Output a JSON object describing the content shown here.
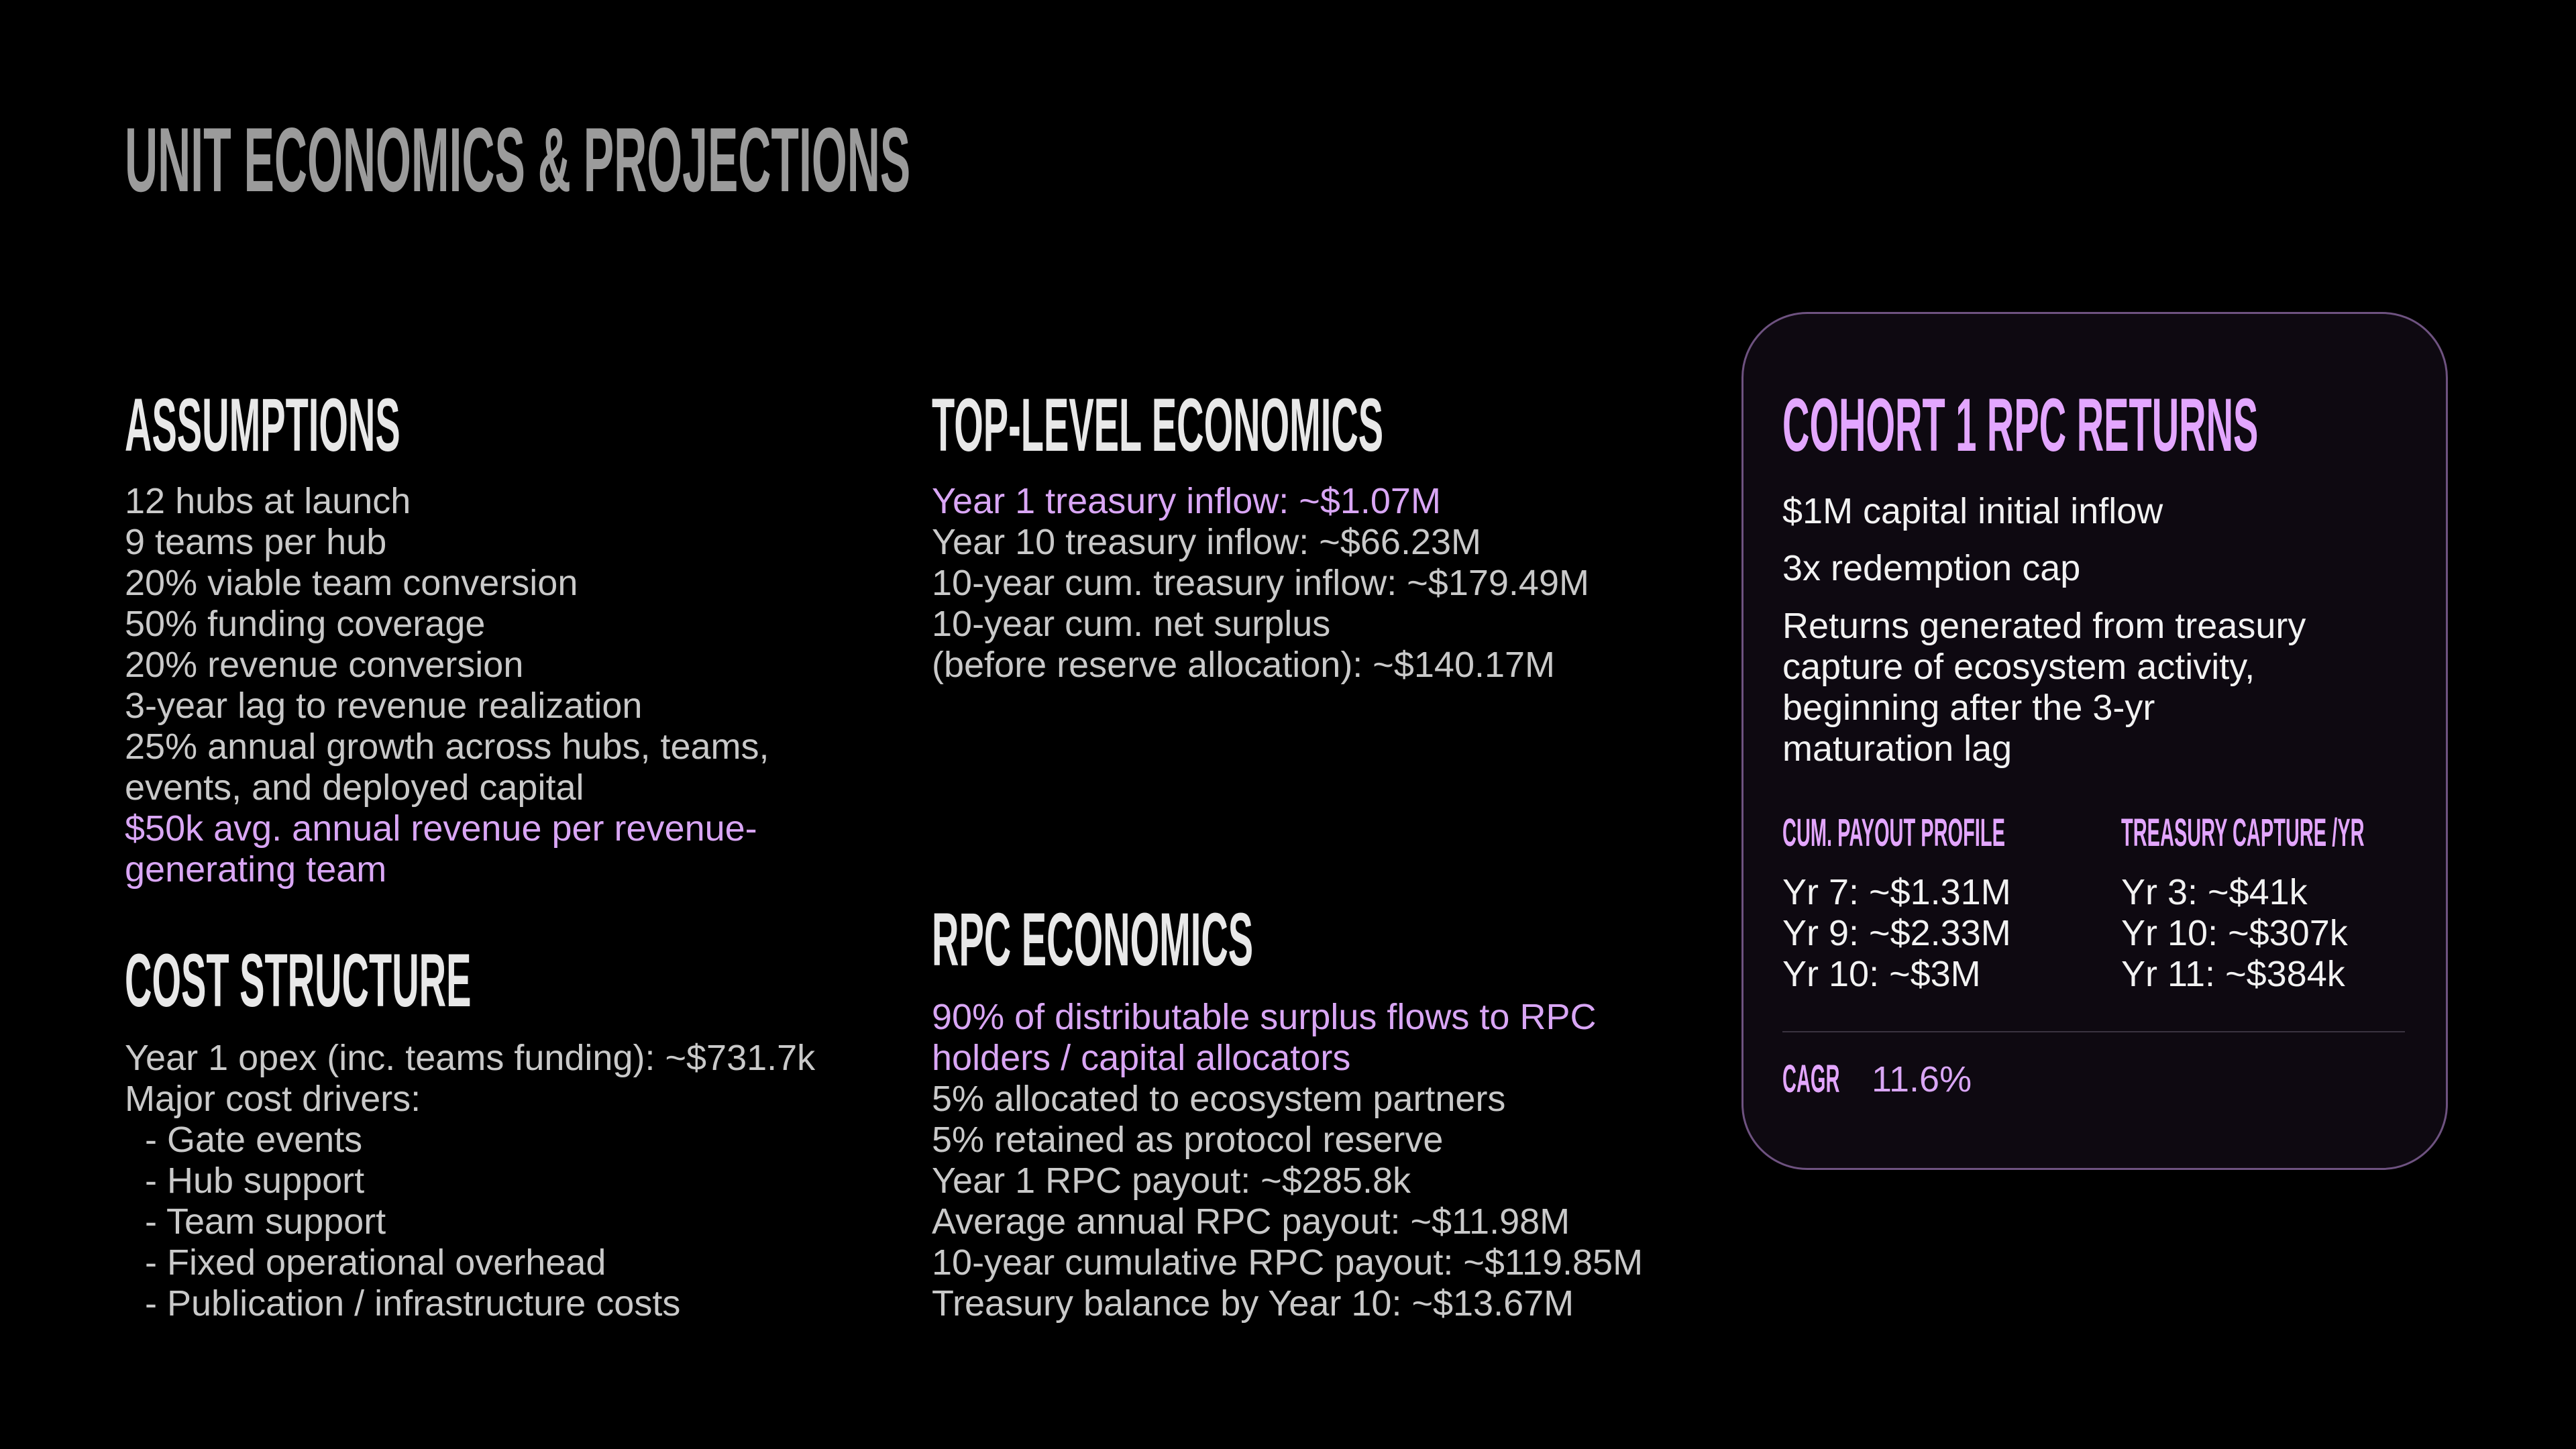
{
  "header": {
    "title": "UNIT ECONOMICS & PROJECTIONS",
    "color": "#9b9b9b"
  },
  "accent_color": "#d9a6f5",
  "assumptions": {
    "title": "ASSUMPTIONS",
    "lines": [
      "12 hubs at launch",
      "9 teams per hub",
      "20% viable team conversion",
      "50% funding coverage",
      "20% revenue conversion",
      "3-year lag to revenue realization",
      "25% annual growth across hubs, teams,",
      "events, and deployed capital",
      "$50k avg. annual revenue per revenue-",
      "generating team"
    ],
    "accent_lines": [
      8,
      9
    ]
  },
  "cost_structure": {
    "title": "COST STRUCTURE",
    "lines": [
      "Year 1 opex (inc. teams funding): ~$731.7k",
      "Major cost drivers:",
      "  - Gate events",
      "  - Hub support",
      "  - Team support",
      "  - Fixed operational overhead",
      "  - Publication / infrastructure costs"
    ],
    "accent_lines": []
  },
  "top_level_economics": {
    "title": "TOP-LEVEL ECONOMICS",
    "lines": [
      "Year 1 treasury inflow: ~$1.07M",
      "Year 10 treasury inflow: ~$66.23M",
      "10-year cum. treasury inflow: ~$179.49M",
      "10-year cum. net surplus",
      "(before reserve allocation): ~$140.17M"
    ],
    "accent_lines": [
      0
    ]
  },
  "rpc_economics": {
    "title": "RPC ECONOMICS",
    "lines": [
      "90% of distributable surplus flows to RPC",
      "holders / capital allocators",
      "5% allocated to ecosystem partners",
      "5% retained as protocol reserve",
      "Year 1 RPC payout: ~$285.8k",
      "Average annual RPC payout: ~$11.98M",
      "10-year cumulative RPC payout: ~$119.85M",
      "Treasury balance by Year 10: ~$13.67M"
    ],
    "accent_lines": [
      0,
      1
    ]
  },
  "cohort_card": {
    "title": "COHORT 1 RPC RETURNS",
    "title_color": "#e3a6ff",
    "items": [
      "$1M capital initial inflow",
      "3x redemption cap"
    ],
    "paragraph": [
      "Returns generated from treasury",
      "capture of ecosystem activity,",
      "beginning after the 3-yr",
      "maturation lag"
    ],
    "payout_profile": {
      "title": "CUM. PAYOUT PROFILE",
      "lines": [
        "Yr 7: ~$1.31M",
        "Yr 9: ~$2.33M",
        "Yr 10: ~$3M"
      ]
    },
    "treasury_capture": {
      "title": "TREASURY CAPTURE /YR",
      "lines": [
        "Yr 3: ~$41k",
        "Yr 10: ~$307k",
        "Yr 11: ~$384k"
      ]
    },
    "cagr": {
      "label": "CAGR",
      "value": "11.6%"
    }
  }
}
